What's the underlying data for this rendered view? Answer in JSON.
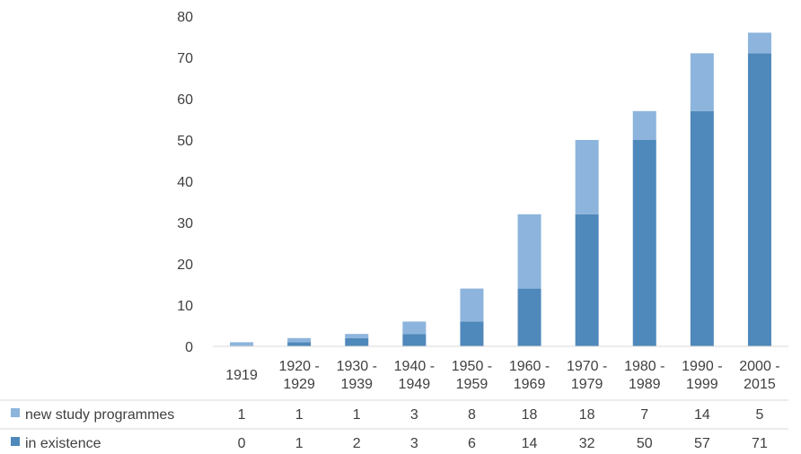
{
  "chart_data": {
    "type": "bar",
    "stacked": true,
    "with_data_table": true,
    "categories": [
      [
        "1919"
      ],
      [
        "1920 -",
        "1929"
      ],
      [
        "1930 -",
        "1939"
      ],
      [
        "1940 -",
        "1949"
      ],
      [
        "1950 -",
        "1959"
      ],
      [
        "1960 -",
        "1969"
      ],
      [
        "1970 -",
        "1979"
      ],
      [
        "1980 -",
        "1989"
      ],
      [
        "1990 -",
        "1999"
      ],
      [
        "2000 -",
        "2015"
      ]
    ],
    "series": [
      {
        "name": "in existence",
        "color": "#4f88bb",
        "values": [
          0,
          1,
          2,
          3,
          6,
          14,
          32,
          50,
          57,
          71
        ]
      },
      {
        "name": "new study programmes",
        "color": "#8db4dc",
        "values": [
          1,
          1,
          1,
          3,
          8,
          18,
          18,
          7,
          14,
          5
        ]
      }
    ],
    "table_row_order": [
      "new study programmes",
      "in existence"
    ],
    "ylim": [
      0,
      80
    ],
    "yticks": [
      0,
      10,
      20,
      30,
      40,
      50,
      60,
      70,
      80
    ],
    "grid": false,
    "title": "",
    "xlabel": "",
    "ylabel": "",
    "legend": "data-table-keys"
  }
}
